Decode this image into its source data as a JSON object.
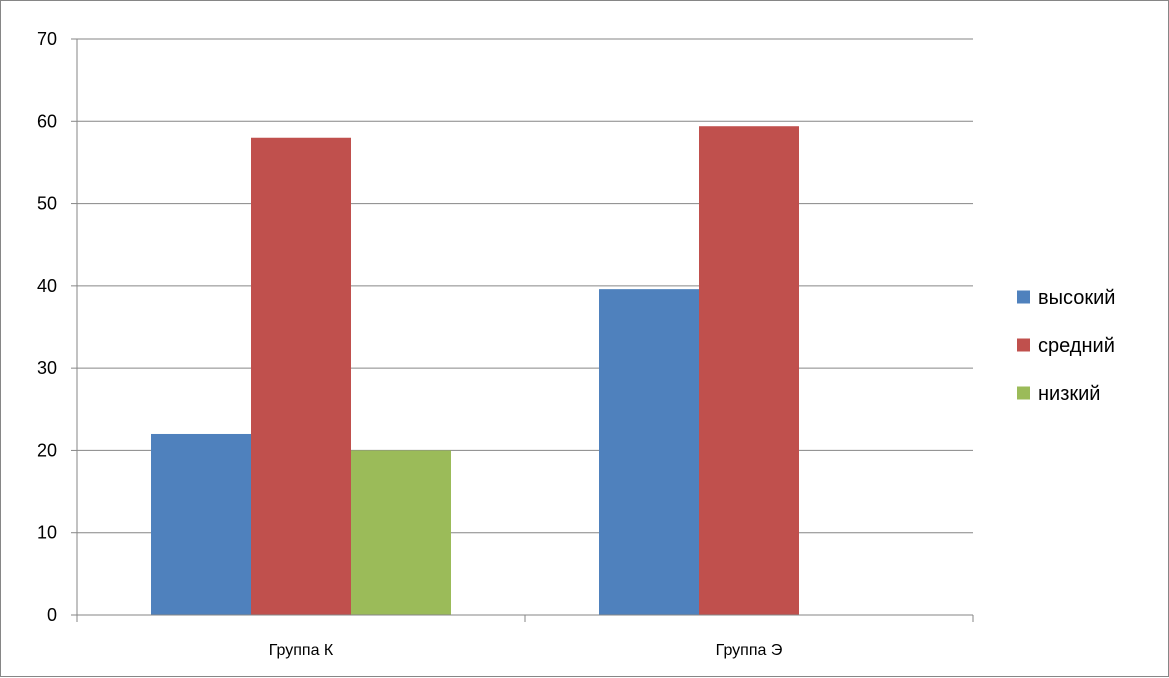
{
  "chart_data": {
    "type": "bar",
    "title": "",
    "xlabel": "",
    "ylabel": "",
    "categories": [
      "Группа К",
      "Группа Э"
    ],
    "series": [
      {
        "name": "высокий",
        "color": "#4F81BD",
        "values": [
          22,
          39.6
        ]
      },
      {
        "name": "средний",
        "color": "#C0504D",
        "values": [
          58,
          59.4
        ]
      },
      {
        "name": "низкий",
        "color": "#9BBB59",
        "values": [
          20,
          0
        ]
      }
    ],
    "ylim": [
      0,
      70
    ],
    "yticks": [
      "0",
      "10",
      "20",
      "30",
      "40",
      "50",
      "60",
      "70"
    ],
    "grid": true,
    "legend_position": "right"
  }
}
